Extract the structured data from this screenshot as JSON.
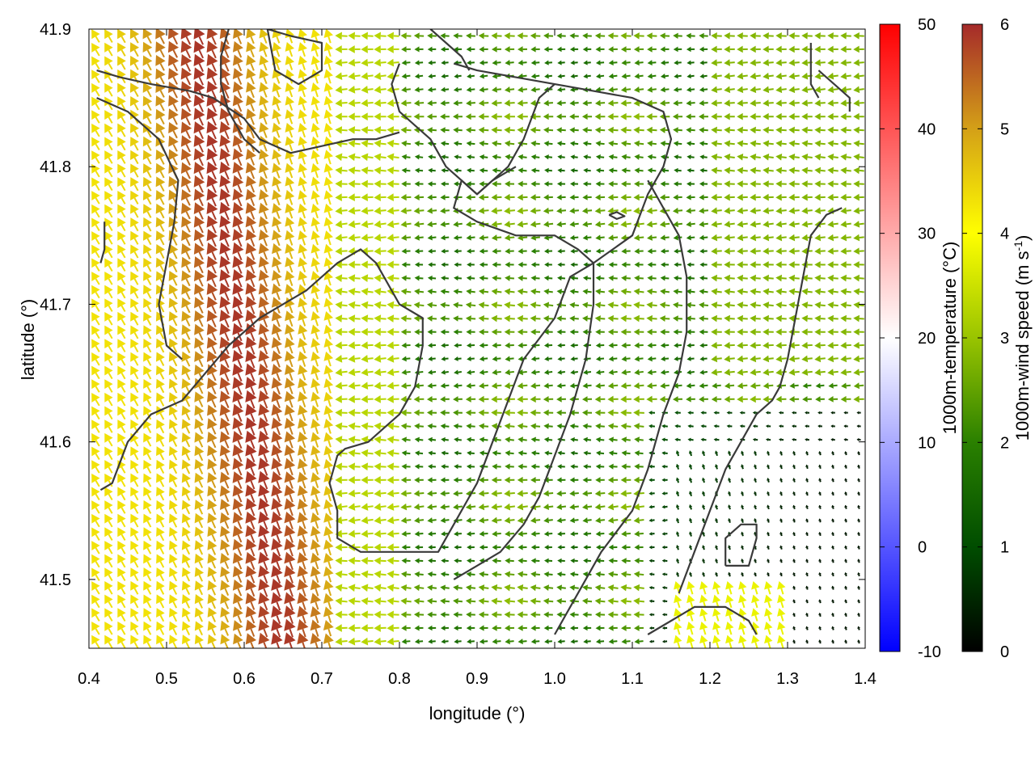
{
  "chart_data": {
    "type": "vector-field",
    "xlabel": "longitude (°)",
    "ylabel": "latitude (°)",
    "xlim": [
      0.4,
      1.4
    ],
    "ylim": [
      41.45,
      41.9
    ],
    "x_ticks": [
      "0.4",
      "0.5",
      "0.6",
      "0.7",
      "0.8",
      "0.9",
      "1.0",
      "1.1",
      "1.2",
      "1.3",
      "1.4"
    ],
    "x_tick_values": [
      0.4,
      0.5,
      0.6,
      0.7,
      0.8,
      0.9,
      1.0,
      1.1,
      1.2,
      1.3,
      1.4
    ],
    "y_ticks": [
      "41.5",
      "41.6",
      "41.7",
      "41.8",
      "41.9"
    ],
    "y_tick_values": [
      41.5,
      41.6,
      41.7,
      41.8,
      41.9
    ],
    "colorbars": [
      {
        "label": "1000m-temperature (°C)",
        "range": [
          -10,
          50
        ],
        "tick_values": [
          -10,
          0,
          10,
          20,
          30,
          40,
          50
        ],
        "tick_labels": [
          "-10",
          "0",
          "10",
          "20",
          "30",
          "40",
          "50"
        ],
        "colors": [
          "#0000ff",
          "#ffffff",
          "#ff0000"
        ]
      },
      {
        "label_main": "1000m-wind speed (m s",
        "label_sup": "-1",
        "label_end": ")",
        "range": [
          0,
          6
        ],
        "tick_values": [
          0,
          1,
          2,
          3,
          4,
          5,
          6
        ],
        "tick_labels": [
          "0",
          "1",
          "2",
          "3",
          "4",
          "5",
          "6"
        ],
        "colors": [
          "#000000",
          "#004d00",
          "#2a8000",
          "#99c400",
          "#ffff00",
          "#d4a017",
          "#a52a2a"
        ]
      }
    ],
    "field_grid": {
      "nx": 60,
      "ny": 46
    },
    "wind_speed_regions": [
      {
        "region": "west 0.40-0.55",
        "speed_range": [
          4,
          5.5
        ]
      },
      {
        "region": "ridge 0.55-0.66",
        "speed_range": [
          5,
          6
        ]
      },
      {
        "region": "transition 0.66-0.75",
        "speed_range": [
          3,
          4
        ]
      },
      {
        "region": "central 0.75-1.20",
        "speed_range": [
          1.5,
          3
        ]
      },
      {
        "region": "south-east 1.12-1.40 below 41.62",
        "speed_range": [
          0,
          1
        ]
      }
    ],
    "contours": [
      [
        [
          0.41,
          41.87
        ],
        [
          0.44,
          41.865
        ],
        [
          0.48,
          41.86
        ],
        [
          0.53,
          41.855
        ],
        [
          0.56,
          41.85
        ],
        [
          0.6,
          41.835
        ],
        [
          0.62,
          41.82
        ],
        [
          0.66,
          41.81
        ],
        [
          0.7,
          41.815
        ],
        [
          0.74,
          41.82
        ],
        [
          0.77,
          41.82
        ],
        [
          0.8,
          41.825
        ]
      ],
      [
        [
          0.41,
          41.85
        ],
        [
          0.45,
          41.84
        ],
        [
          0.49,
          41.82
        ],
        [
          0.515,
          41.79
        ],
        [
          0.51,
          41.76
        ],
        [
          0.5,
          41.73
        ],
        [
          0.49,
          41.7
        ],
        [
          0.5,
          41.67
        ],
        [
          0.52,
          41.66
        ]
      ],
      [
        [
          0.63,
          41.9
        ],
        [
          0.66,
          41.895
        ],
        [
          0.7,
          41.89
        ],
        [
          0.7,
          41.87
        ],
        [
          0.67,
          41.86
        ],
        [
          0.64,
          41.87
        ],
        [
          0.63,
          41.9
        ]
      ],
      [
        [
          0.42,
          41.76
        ],
        [
          0.42,
          41.74
        ],
        [
          0.415,
          41.73
        ]
      ],
      [
        [
          0.415,
          41.565
        ],
        [
          0.43,
          41.57
        ],
        [
          0.45,
          41.6
        ],
        [
          0.48,
          41.62
        ],
        [
          0.52,
          41.63
        ],
        [
          0.55,
          41.65
        ],
        [
          0.58,
          41.67
        ],
        [
          0.62,
          41.69
        ],
        [
          0.65,
          41.7
        ],
        [
          0.68,
          41.71
        ],
        [
          0.7,
          41.72
        ],
        [
          0.72,
          41.73
        ],
        [
          0.75,
          41.74
        ],
        [
          0.77,
          41.73
        ],
        [
          0.78,
          41.72
        ],
        [
          0.8,
          41.7
        ],
        [
          0.83,
          41.69
        ],
        [
          0.83,
          41.67
        ],
        [
          0.82,
          41.64
        ],
        [
          0.8,
          41.62
        ],
        [
          0.78,
          41.61
        ],
        [
          0.76,
          41.6
        ],
        [
          0.73,
          41.595
        ],
        [
          0.72,
          41.59
        ],
        [
          0.71,
          41.57
        ],
        [
          0.72,
          41.55
        ],
        [
          0.72,
          41.53
        ],
        [
          0.75,
          41.52
        ],
        [
          0.8,
          41.52
        ],
        [
          0.85,
          41.52
        ],
        [
          0.87,
          41.54
        ],
        [
          0.9,
          41.57
        ],
        [
          0.92,
          41.6
        ],
        [
          0.94,
          41.63
        ],
        [
          0.96,
          41.66
        ],
        [
          1.0,
          41.69
        ],
        [
          1.02,
          41.72
        ],
        [
          1.05,
          41.73
        ],
        [
          1.1,
          41.75
        ],
        [
          1.12,
          41.78
        ],
        [
          1.14,
          41.8
        ],
        [
          1.15,
          41.82
        ],
        [
          1.14,
          41.84
        ],
        [
          1.1,
          41.85
        ],
        [
          1.05,
          41.855
        ],
        [
          1.0,
          41.86
        ],
        [
          0.95,
          41.865
        ],
        [
          0.9,
          41.87
        ],
        [
          0.87,
          41.875
        ]
      ],
      [
        [
          1.0,
          41.86
        ],
        [
          0.98,
          41.85
        ],
        [
          0.96,
          41.82
        ],
        [
          0.94,
          41.8
        ],
        [
          0.92,
          41.79
        ],
        [
          0.9,
          41.78
        ],
        [
          0.88,
          41.79
        ],
        [
          0.86,
          41.8
        ],
        [
          0.84,
          41.82
        ],
        [
          0.82,
          41.83
        ],
        [
          0.8,
          41.84
        ],
        [
          0.79,
          41.86
        ],
        [
          0.8,
          41.875
        ]
      ],
      [
        [
          0.95,
          41.8
        ],
        [
          0.92,
          41.79
        ],
        [
          0.9,
          41.78
        ],
        [
          0.88,
          41.79
        ],
        [
          0.87,
          41.77
        ],
        [
          0.9,
          41.76
        ],
        [
          0.95,
          41.75
        ],
        [
          1.0,
          41.75
        ],
        [
          1.03,
          41.74
        ],
        [
          1.05,
          41.73
        ],
        [
          1.05,
          41.7
        ],
        [
          1.04,
          41.66
        ],
        [
          1.02,
          41.62
        ],
        [
          1.0,
          41.59
        ],
        [
          0.98,
          41.56
        ],
        [
          0.96,
          41.54
        ],
        [
          0.93,
          41.52
        ],
        [
          0.9,
          41.51
        ],
        [
          0.87,
          41.5
        ]
      ],
      [
        [
          1.12,
          41.79
        ],
        [
          1.14,
          41.77
        ],
        [
          1.16,
          41.75
        ],
        [
          1.17,
          41.72
        ],
        [
          1.17,
          41.68
        ],
        [
          1.16,
          41.65
        ],
        [
          1.14,
          41.62
        ],
        [
          1.12,
          41.58
        ],
        [
          1.1,
          41.55
        ],
        [
          1.06,
          41.52
        ],
        [
          1.04,
          41.5
        ],
        [
          1.02,
          41.48
        ],
        [
          1.0,
          41.46
        ]
      ],
      [
        [
          1.07,
          41.765
        ],
        [
          1.08,
          41.762
        ],
        [
          1.09,
          41.764
        ],
        [
          1.08,
          41.767
        ],
        [
          1.07,
          41.765
        ]
      ],
      [
        [
          1.34,
          41.87
        ],
        [
          1.36,
          41.86
        ],
        [
          1.38,
          41.85
        ],
        [
          1.38,
          41.84
        ]
      ],
      [
        [
          1.33,
          41.89
        ],
        [
          1.33,
          41.86
        ],
        [
          1.34,
          41.85
        ]
      ],
      [
        [
          1.37,
          41.77
        ],
        [
          1.35,
          41.765
        ],
        [
          1.33,
          41.75
        ],
        [
          1.32,
          41.72
        ],
        [
          1.31,
          41.69
        ],
        [
          1.3,
          41.66
        ],
        [
          1.29,
          41.64
        ],
        [
          1.28,
          41.63
        ],
        [
          1.26,
          41.62
        ],
        [
          1.24,
          41.6
        ],
        [
          1.22,
          41.58
        ],
        [
          1.2,
          41.55
        ],
        [
          1.18,
          41.52
        ],
        [
          1.16,
          41.49
        ]
      ],
      [
        [
          1.12,
          41.46
        ],
        [
          1.15,
          41.47
        ],
        [
          1.18,
          41.48
        ],
        [
          1.22,
          41.48
        ],
        [
          1.25,
          41.47
        ],
        [
          1.26,
          41.46
        ]
      ],
      [
        [
          1.22,
          41.51
        ],
        [
          1.25,
          41.51
        ],
        [
          1.26,
          41.53
        ],
        [
          1.26,
          41.54
        ],
        [
          1.24,
          41.54
        ],
        [
          1.22,
          41.53
        ],
        [
          1.22,
          41.51
        ]
      ],
      [
        [
          0.58,
          41.9
        ],
        [
          0.57,
          41.88
        ],
        [
          0.57,
          41.86
        ],
        [
          0.58,
          41.84
        ],
        [
          0.6,
          41.82
        ],
        [
          0.62,
          41.81
        ]
      ],
      [
        [
          0.84,
          41.9
        ],
        [
          0.86,
          41.89
        ],
        [
          0.88,
          41.88
        ],
        [
          0.89,
          41.87
        ]
      ]
    ]
  }
}
